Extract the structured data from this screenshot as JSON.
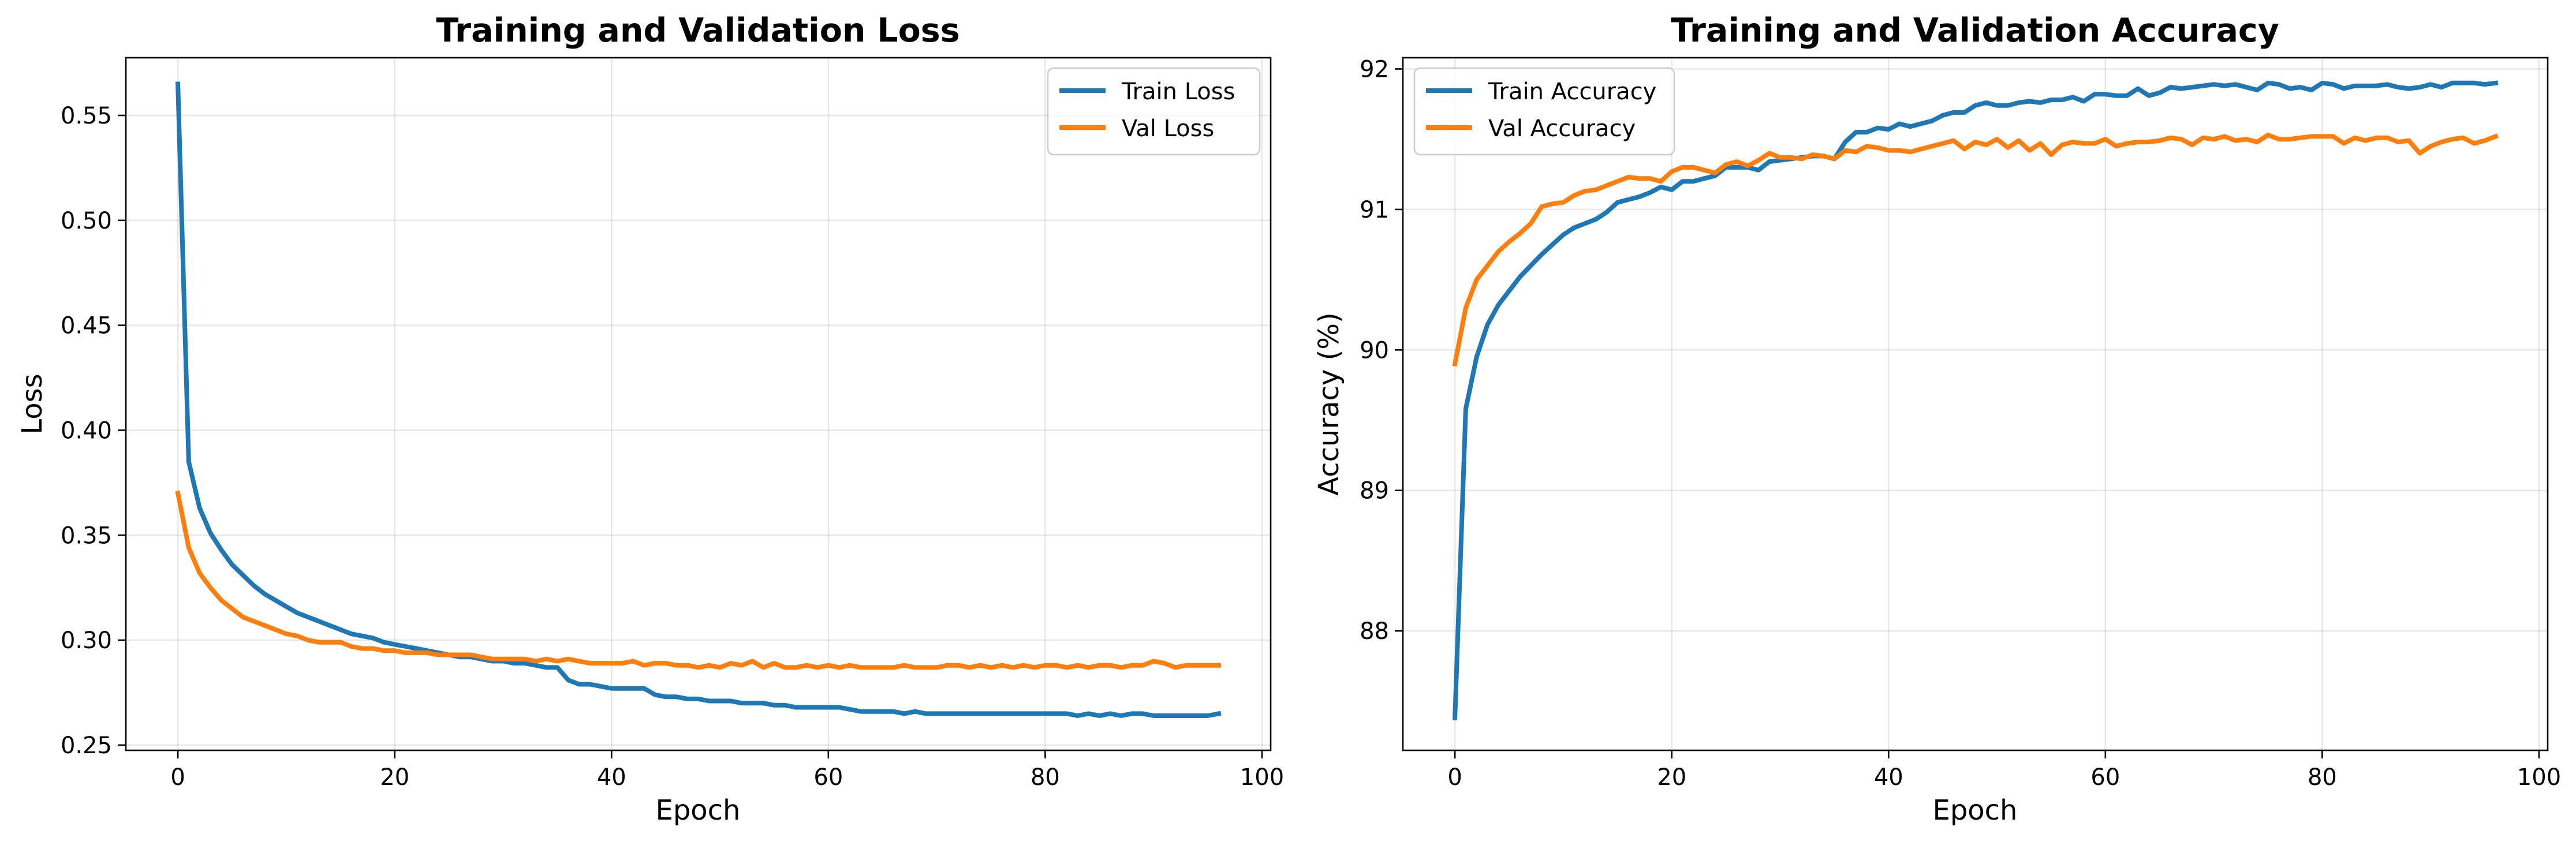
{
  "chart_data": [
    {
      "type": "line",
      "title": "Training and Validation Loss",
      "xlabel": "Epoch",
      "ylabel": "Loss",
      "xlim": [
        -4.8,
        100.8
      ],
      "ylim": [
        0.2475,
        0.5775
      ],
      "xticks": [
        0,
        20,
        40,
        60,
        80,
        100
      ],
      "xtick_labels": [
        "0",
        "20",
        "40",
        "60",
        "80",
        "100"
      ],
      "yticks": [
        0.25,
        0.3,
        0.35,
        0.4,
        0.45,
        0.5,
        0.55
      ],
      "ytick_labels": [
        "0.25",
        "0.30",
        "0.35",
        "0.40",
        "0.45",
        "0.50",
        "0.55"
      ],
      "grid": true,
      "legend_position": "top-right",
      "series": [
        {
          "name": "Train Loss",
          "color": "#1f77b4",
          "x": [
            0,
            1,
            2,
            3,
            4,
            5,
            6,
            7,
            8,
            9,
            10,
            11,
            12,
            13,
            14,
            15,
            16,
            17,
            18,
            19,
            20,
            21,
            22,
            23,
            24,
            25,
            26,
            27,
            28,
            29,
            30,
            31,
            32,
            33,
            34,
            35,
            36,
            37,
            38,
            39,
            40,
            41,
            42,
            43,
            44,
            45,
            46,
            47,
            48,
            49,
            50,
            51,
            52,
            53,
            54,
            55,
            56,
            57,
            58,
            59,
            60,
            61,
            62,
            63,
            64,
            65,
            66,
            67,
            68,
            69,
            70,
            71,
            72,
            73,
            74,
            75,
            76,
            77,
            78,
            79,
            80,
            81,
            82,
            83,
            84,
            85,
            86,
            87,
            88,
            89,
            90,
            91,
            92,
            93,
            94,
            95,
            96
          ],
          "values": [
            0.565,
            0.385,
            0.363,
            0.351,
            0.343,
            0.336,
            0.331,
            0.326,
            0.322,
            0.319,
            0.316,
            0.313,
            0.311,
            0.309,
            0.307,
            0.305,
            0.303,
            0.302,
            0.301,
            0.299,
            0.298,
            0.297,
            0.296,
            0.295,
            0.294,
            0.293,
            0.292,
            0.292,
            0.291,
            0.29,
            0.29,
            0.289,
            0.289,
            0.288,
            0.287,
            0.287,
            0.281,
            0.279,
            0.279,
            0.278,
            0.277,
            0.277,
            0.277,
            0.277,
            0.274,
            0.273,
            0.273,
            0.272,
            0.272,
            0.271,
            0.271,
            0.271,
            0.27,
            0.27,
            0.27,
            0.269,
            0.269,
            0.268,
            0.268,
            0.268,
            0.268,
            0.268,
            0.267,
            0.266,
            0.266,
            0.266,
            0.266,
            0.265,
            0.266,
            0.265,
            0.265,
            0.265,
            0.265,
            0.265,
            0.265,
            0.265,
            0.265,
            0.265,
            0.265,
            0.265,
            0.265,
            0.265,
            0.265,
            0.264,
            0.265,
            0.264,
            0.265,
            0.264,
            0.265,
            0.265,
            0.264,
            0.264,
            0.264,
            0.264,
            0.264,
            0.264,
            0.265
          ]
        },
        {
          "name": "Val Loss",
          "color": "#ff7f0e",
          "x": [
            0,
            1,
            2,
            3,
            4,
            5,
            6,
            7,
            8,
            9,
            10,
            11,
            12,
            13,
            14,
            15,
            16,
            17,
            18,
            19,
            20,
            21,
            22,
            23,
            24,
            25,
            26,
            27,
            28,
            29,
            30,
            31,
            32,
            33,
            34,
            35,
            36,
            37,
            38,
            39,
            40,
            41,
            42,
            43,
            44,
            45,
            46,
            47,
            48,
            49,
            50,
            51,
            52,
            53,
            54,
            55,
            56,
            57,
            58,
            59,
            60,
            61,
            62,
            63,
            64,
            65,
            66,
            67,
            68,
            69,
            70,
            71,
            72,
            73,
            74,
            75,
            76,
            77,
            78,
            79,
            80,
            81,
            82,
            83,
            84,
            85,
            86,
            87,
            88,
            89,
            90,
            91,
            92,
            93,
            94,
            95,
            96
          ],
          "values": [
            0.37,
            0.344,
            0.332,
            0.325,
            0.319,
            0.315,
            0.311,
            0.309,
            0.307,
            0.305,
            0.303,
            0.302,
            0.3,
            0.299,
            0.299,
            0.299,
            0.297,
            0.296,
            0.296,
            0.295,
            0.295,
            0.294,
            0.294,
            0.294,
            0.293,
            0.293,
            0.293,
            0.293,
            0.292,
            0.291,
            0.291,
            0.291,
            0.291,
            0.29,
            0.291,
            0.29,
            0.291,
            0.29,
            0.289,
            0.289,
            0.289,
            0.289,
            0.29,
            0.288,
            0.289,
            0.289,
            0.288,
            0.288,
            0.287,
            0.288,
            0.287,
            0.289,
            0.288,
            0.29,
            0.287,
            0.289,
            0.287,
            0.287,
            0.288,
            0.287,
            0.288,
            0.287,
            0.288,
            0.287,
            0.287,
            0.287,
            0.287,
            0.288,
            0.287,
            0.287,
            0.287,
            0.288,
            0.288,
            0.287,
            0.288,
            0.287,
            0.288,
            0.287,
            0.288,
            0.287,
            0.288,
            0.288,
            0.287,
            0.288,
            0.287,
            0.288,
            0.288,
            0.287,
            0.288,
            0.288,
            0.29,
            0.289,
            0.287,
            0.288,
            0.288,
            0.288,
            0.288
          ]
        }
      ]
    },
    {
      "type": "line",
      "title": "Training and Validation Accuracy",
      "xlabel": "Epoch",
      "ylabel": "Accuracy (%)",
      "xlim": [
        -4.8,
        100.8
      ],
      "ylim": [
        87.15,
        92.08
      ],
      "xticks": [
        0,
        20,
        40,
        60,
        80,
        100
      ],
      "xtick_labels": [
        "0",
        "20",
        "40",
        "60",
        "80",
        "100"
      ],
      "yticks": [
        88,
        89,
        90,
        91,
        92
      ],
      "ytick_labels": [
        "88",
        "89",
        "90",
        "91",
        "92"
      ],
      "grid": true,
      "legend_position": "top-left",
      "series": [
        {
          "name": "Train Accuracy",
          "color": "#1f77b4",
          "x": [
            0,
            1,
            2,
            3,
            4,
            5,
            6,
            7,
            8,
            9,
            10,
            11,
            12,
            13,
            14,
            15,
            16,
            17,
            18,
            19,
            20,
            21,
            22,
            23,
            24,
            25,
            26,
            27,
            28,
            29,
            30,
            31,
            32,
            33,
            34,
            35,
            36,
            37,
            38,
            39,
            40,
            41,
            42,
            43,
            44,
            45,
            46,
            47,
            48,
            49,
            50,
            51,
            52,
            53,
            54,
            55,
            56,
            57,
            58,
            59,
            60,
            61,
            62,
            63,
            64,
            65,
            66,
            67,
            68,
            69,
            70,
            71,
            72,
            73,
            74,
            75,
            76,
            77,
            78,
            79,
            80,
            81,
            82,
            83,
            84,
            85,
            86,
            87,
            88,
            89,
            90,
            91,
            92,
            93,
            94,
            95,
            96
          ],
          "values": [
            87.38,
            89.58,
            89.95,
            90.18,
            90.32,
            90.42,
            90.52,
            90.6,
            90.68,
            90.75,
            90.82,
            90.87,
            90.9,
            90.93,
            90.98,
            91.05,
            91.07,
            91.09,
            91.12,
            91.16,
            91.14,
            91.2,
            91.2,
            91.22,
            91.24,
            91.3,
            91.3,
            91.3,
            91.28,
            91.34,
            91.35,
            91.36,
            91.37,
            91.38,
            91.38,
            91.36,
            91.48,
            91.55,
            91.55,
            91.58,
            91.57,
            91.61,
            91.59,
            91.61,
            91.63,
            91.67,
            91.69,
            91.69,
            91.74,
            91.76,
            91.74,
            91.74,
            91.76,
            91.77,
            91.76,
            91.78,
            91.78,
            91.8,
            91.77,
            91.82,
            91.82,
            91.81,
            91.81,
            91.86,
            91.81,
            91.83,
            91.87,
            91.86,
            91.87,
            91.88,
            91.89,
            91.88,
            91.89,
            91.87,
            91.85,
            91.9,
            91.89,
            91.86,
            91.87,
            91.85,
            91.9,
            91.89,
            91.86,
            91.88,
            91.88,
            91.88,
            91.89,
            91.87,
            91.86,
            91.87,
            91.89,
            91.87,
            91.9,
            91.9,
            91.9,
            91.89,
            91.9
          ]
        },
        {
          "name": "Val Accuracy",
          "color": "#ff7f0e",
          "x": [
            0,
            1,
            2,
            3,
            4,
            5,
            6,
            7,
            8,
            9,
            10,
            11,
            12,
            13,
            14,
            15,
            16,
            17,
            18,
            19,
            20,
            21,
            22,
            23,
            24,
            25,
            26,
            27,
            28,
            29,
            30,
            31,
            32,
            33,
            34,
            35,
            36,
            37,
            38,
            39,
            40,
            41,
            42,
            43,
            44,
            45,
            46,
            47,
            48,
            49,
            50,
            51,
            52,
            53,
            54,
            55,
            56,
            57,
            58,
            59,
            60,
            61,
            62,
            63,
            64,
            65,
            66,
            67,
            68,
            69,
            70,
            71,
            72,
            73,
            74,
            75,
            76,
            77,
            78,
            79,
            80,
            81,
            82,
            83,
            84,
            85,
            86,
            87,
            88,
            89,
            90,
            91,
            92,
            93,
            94,
            95,
            96
          ],
          "values": [
            89.9,
            90.3,
            90.5,
            90.6,
            90.7,
            90.77,
            90.83,
            90.9,
            91.02,
            91.04,
            91.05,
            91.1,
            91.13,
            91.14,
            91.17,
            91.2,
            91.23,
            91.22,
            91.22,
            91.2,
            91.27,
            91.3,
            91.3,
            91.28,
            91.26,
            91.32,
            91.34,
            91.31,
            91.35,
            91.4,
            91.37,
            91.37,
            91.36,
            91.39,
            91.38,
            91.36,
            91.42,
            91.41,
            91.45,
            91.44,
            91.42,
            91.42,
            91.41,
            91.43,
            91.45,
            91.47,
            91.49,
            91.43,
            91.48,
            91.46,
            91.5,
            91.44,
            91.49,
            91.42,
            91.47,
            91.39,
            91.46,
            91.48,
            91.47,
            91.47,
            91.5,
            91.45,
            91.47,
            91.48,
            91.48,
            91.49,
            91.51,
            91.5,
            91.46,
            91.51,
            91.5,
            91.52,
            91.49,
            91.5,
            91.48,
            91.53,
            91.5,
            91.5,
            91.51,
            91.52,
            91.52,
            91.52,
            91.47,
            91.51,
            91.49,
            91.51,
            91.51,
            91.48,
            91.49,
            91.4,
            91.45,
            91.48,
            91.5,
            91.51,
            91.47,
            91.49,
            91.52
          ]
        }
      ]
    }
  ]
}
